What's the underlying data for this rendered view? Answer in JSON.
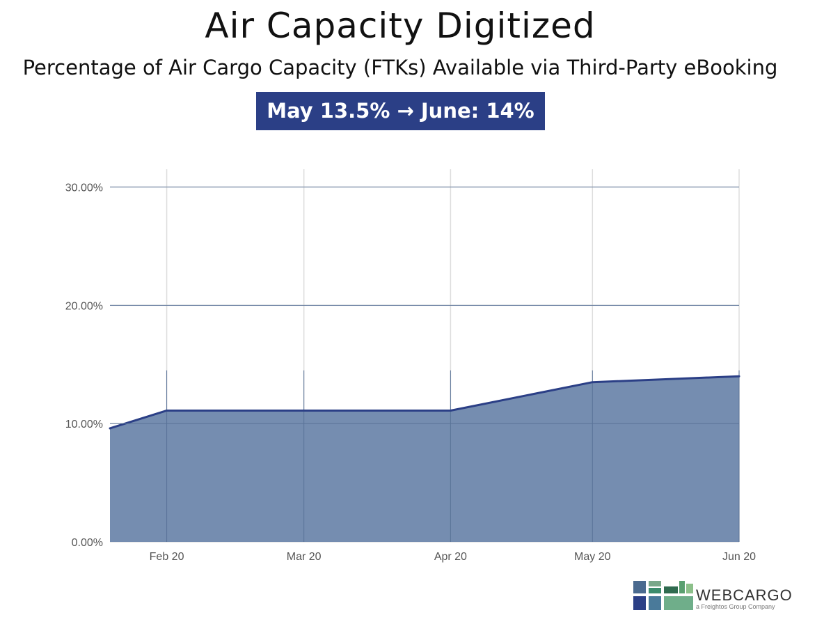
{
  "title": "Air Capacity Digitized",
  "subtitle": "Percentage of Air Cargo Capacity (FTKs) Available via Third-Party eBooking",
  "banner": "May 13.5% → June: 14%",
  "logo": {
    "name": "WEBCARGO",
    "tagline": "a Freightos Group Company"
  },
  "colors": {
    "banner": "#2b3f86",
    "area_fill": "#6f88ad",
    "line": "#2b3f86",
    "grid": "#dddddd"
  },
  "chart_data": {
    "type": "area",
    "x": [
      "2020-01-20",
      "2020-02-01",
      "2020-03-01",
      "2020-04-01",
      "2020-05-01",
      "2020-06-01"
    ],
    "y": [
      9.6,
      11.1,
      11.1,
      11.1,
      13.5,
      14.0
    ],
    "x_tick_labels": [
      "Feb 20",
      "Mar 20",
      "Apr 20",
      "May 20",
      "Jun 20"
    ],
    "y_tick_labels": [
      "0.00%",
      "10.00%",
      "20.00%",
      "30.00%"
    ],
    "y_ticks": [
      0,
      10,
      20,
      30
    ],
    "ylim": [
      0,
      31.5
    ],
    "grid": true,
    "legend": "none"
  }
}
